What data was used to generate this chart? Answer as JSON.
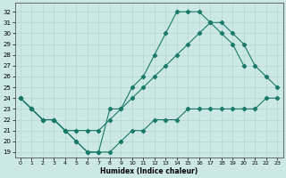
{
  "xlabel": "Humidex (Indice chaleur)",
  "bg_color": "#cce8e4",
  "grid_color": "#b8d8d4",
  "line_color": "#1a7a6a",
  "xlim": [
    -0.5,
    23.5
  ],
  "ylim": [
    18.5,
    32.8
  ],
  "xticks": [
    0,
    1,
    2,
    3,
    4,
    5,
    6,
    7,
    8,
    9,
    10,
    11,
    12,
    13,
    14,
    15,
    16,
    17,
    18,
    19,
    20,
    21,
    22,
    23
  ],
  "yticks": [
    19,
    20,
    21,
    22,
    23,
    24,
    25,
    26,
    27,
    28,
    29,
    30,
    31,
    32
  ],
  "line_top_x": [
    0,
    1,
    2,
    3,
    4,
    5,
    6,
    7,
    8,
    9,
    10,
    11,
    12,
    13,
    14,
    15,
    16,
    17,
    18,
    19,
    20
  ],
  "line_top_y": [
    24,
    23,
    22,
    22,
    21,
    20,
    19,
    19,
    23,
    23,
    25,
    26,
    28,
    30,
    32,
    32,
    32,
    31,
    30,
    29,
    27
  ],
  "line_mid_x": [
    0,
    1,
    2,
    3,
    4,
    5,
    6,
    7,
    8,
    9,
    10,
    11,
    12,
    13,
    14,
    15,
    16,
    17,
    18,
    19,
    20,
    21,
    22,
    23
  ],
  "line_mid_y": [
    24,
    23,
    22,
    22,
    21,
    21,
    21,
    21,
    22,
    23,
    24,
    25,
    26,
    27,
    28,
    29,
    30,
    31,
    31,
    30,
    29,
    27,
    26,
    25
  ],
  "line_bot_x": [
    0,
    1,
    2,
    3,
    4,
    5,
    6,
    7,
    8,
    9,
    10,
    11,
    12,
    13,
    14,
    15,
    16,
    17,
    18,
    19,
    20,
    21,
    22,
    23
  ],
  "line_bot_y": [
    24,
    23,
    22,
    22,
    21,
    20,
    19,
    19,
    19,
    20,
    21,
    21,
    22,
    22,
    22,
    23,
    23,
    23,
    23,
    23,
    23,
    23,
    24,
    24
  ]
}
